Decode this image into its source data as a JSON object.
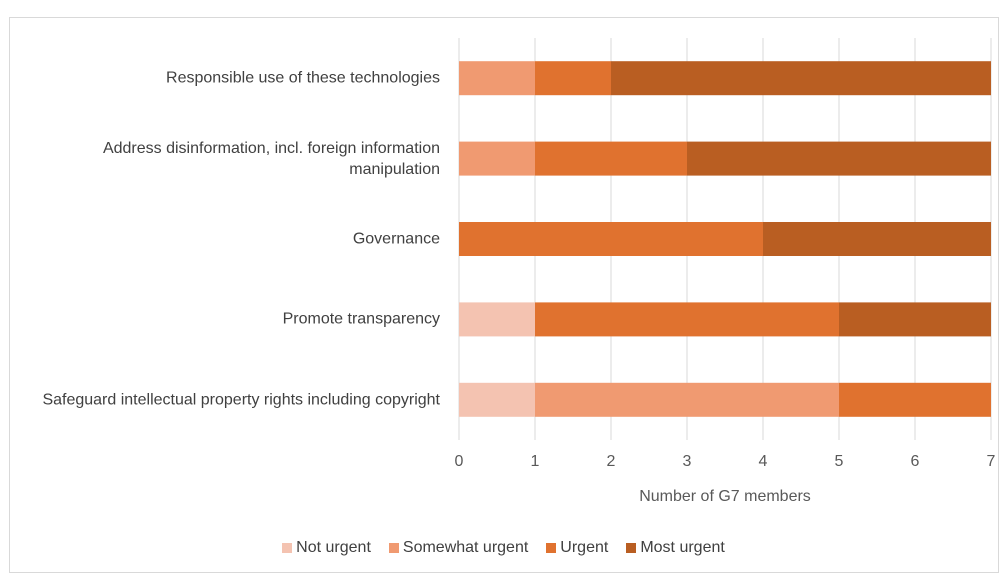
{
  "chart_data": {
    "type": "stacked_barh",
    "categories": [
      "Responsible use of these technologies",
      "Address disinformation, incl. foreign information manipulation",
      "Governance",
      "Promote transparency",
      "Safeguard intellectual property rights including copyright"
    ],
    "series": [
      {
        "name": "Not urgent",
        "color": "#f4c3b1",
        "values": [
          0,
          0,
          0,
          1,
          1
        ]
      },
      {
        "name": "Somewhat urgent",
        "color": "#f09a71",
        "values": [
          1,
          1,
          0,
          0,
          4
        ]
      },
      {
        "name": "Urgent",
        "color": "#e0722f",
        "values": [
          1,
          2,
          4,
          4,
          2
        ]
      },
      {
        "name": "Most urgent",
        "color": "#b95e22",
        "values": [
          5,
          4,
          3,
          2,
          0
        ]
      }
    ],
    "xlim": [
      0,
      7
    ],
    "xticks": [
      0,
      1,
      2,
      3,
      4,
      5,
      6,
      7
    ],
    "xlabel": "Number of G7 members",
    "grid": true,
    "legend": "bottom"
  }
}
